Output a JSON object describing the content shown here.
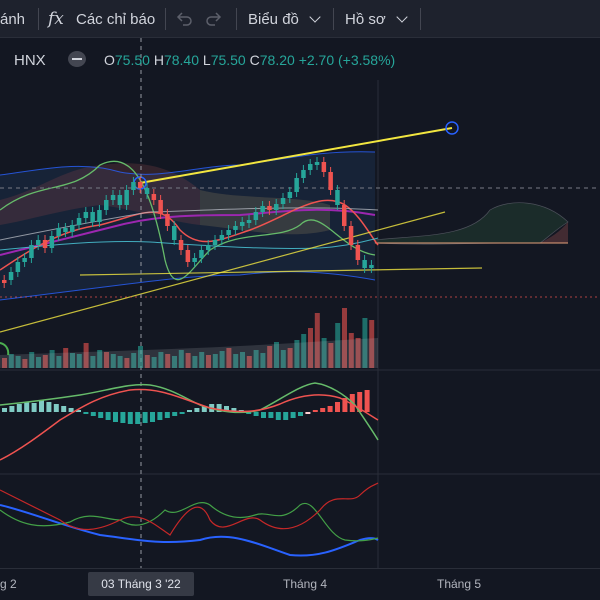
{
  "toolbar": {
    "partial_label": "ánh",
    "fx_icon": "function-fx-icon",
    "indicators_label": "Các chỉ báo",
    "undo_icon": "undo-icon",
    "redo_icon": "redo-icon",
    "chart_type_label": "Biểu đồ",
    "profile_label": "Hồ sơ"
  },
  "legend": {
    "symbol": "HNX",
    "open_key": "O",
    "open": "75.50",
    "high_key": "H",
    "high": "78.40",
    "low_key": "L",
    "low": "75.50",
    "close_key": "C",
    "close": "78.20",
    "change": "+2.70 (+3.58%)",
    "up_color": "#26a69a",
    "down_color": "#ef5350"
  },
  "date_axis": {
    "labels": [
      "g 2",
      "03 Tháng 3 '22",
      "Tháng 4",
      "Tháng 5"
    ],
    "highlighted": "03 Tháng 3 '22"
  },
  "chart_data": {
    "type": "candlestick",
    "volume_series_colors": {
      "up": "#26a69a",
      "down": "#ef5350"
    },
    "indicators": [
      "Bollinger Bands",
      "Ichimoku Cloud",
      "Moving averages",
      "Volume",
      "MACD",
      "RSI-type oscillator"
    ]
  }
}
